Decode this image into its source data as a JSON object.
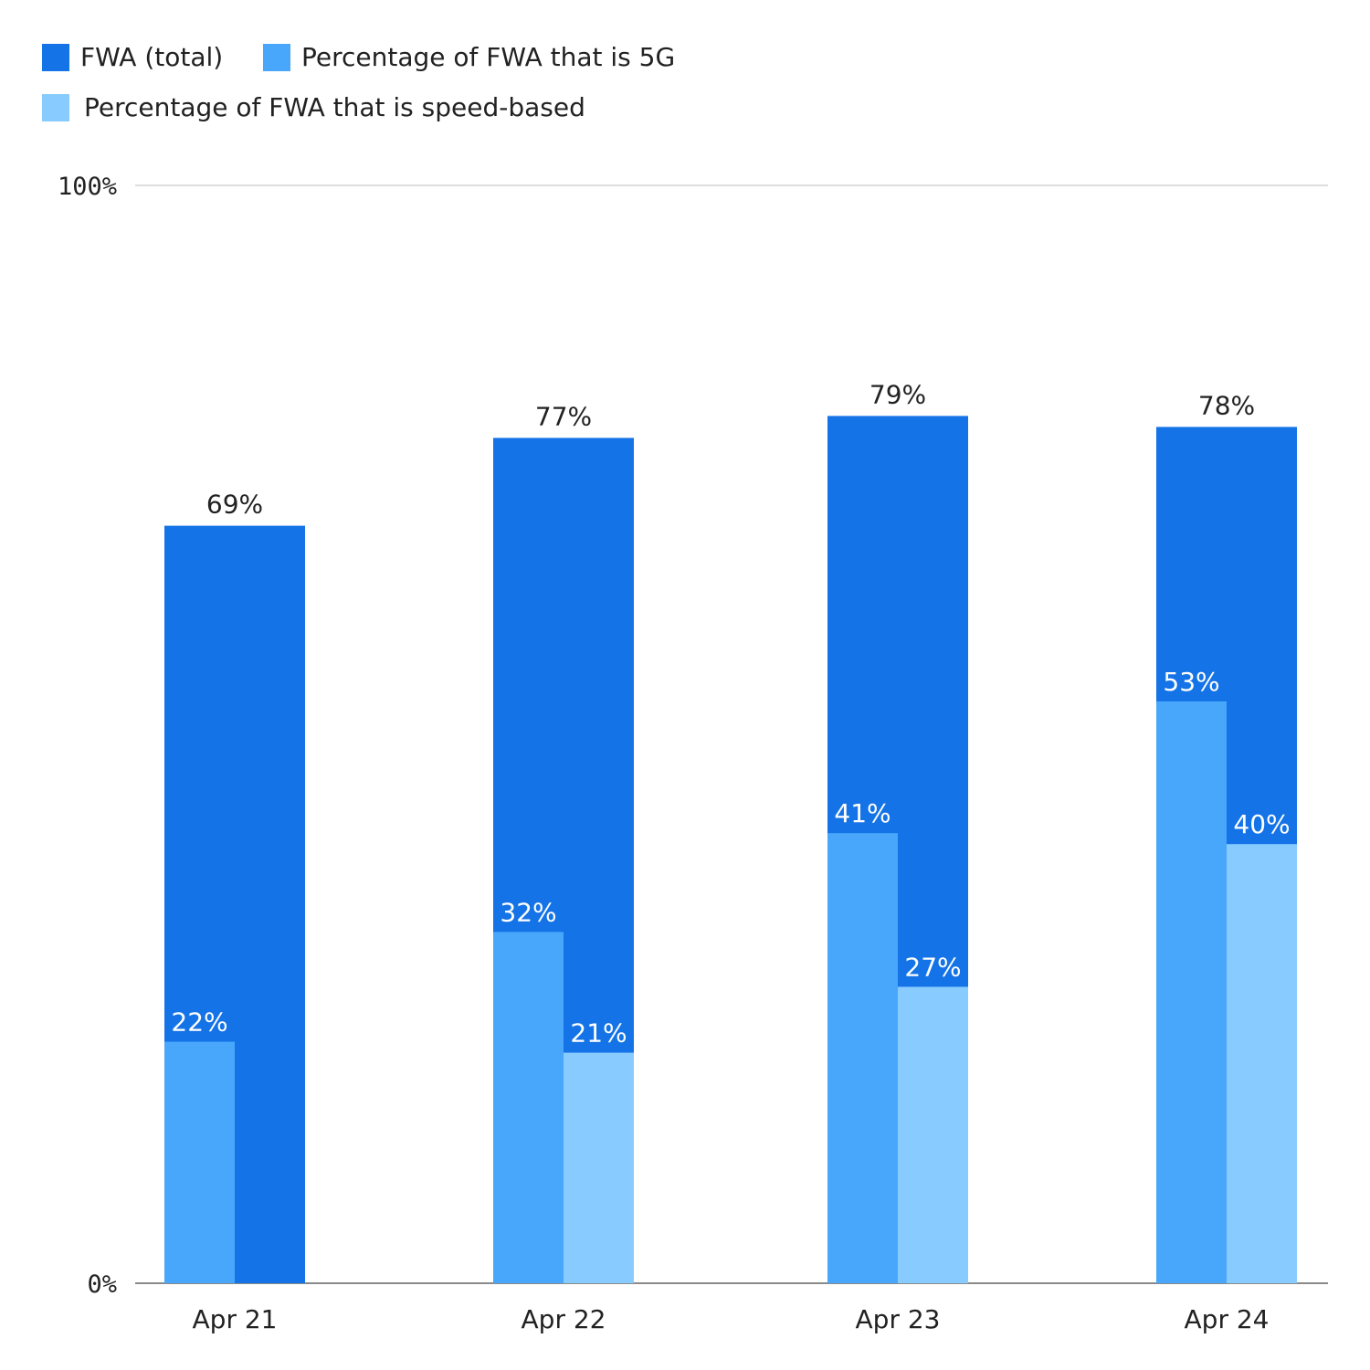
{
  "legend": {
    "items": [
      {
        "label": "FWA (total)",
        "color": "#1473E6"
      },
      {
        "label": "Percentage of FWA that is 5G",
        "color": "#48A7FA"
      },
      {
        "label": "Percentage of FWA that is speed-based",
        "color": "#88CCFF"
      }
    ]
  },
  "chart_data": {
    "type": "bar",
    "categories": [
      "Apr 21",
      "Apr 22",
      "Apr 23",
      "Apr 24"
    ],
    "series": [
      {
        "name": "FWA (total)",
        "values": [
          69,
          77,
          79,
          78
        ],
        "labels": [
          "69%",
          "77%",
          "79%",
          "78%"
        ],
        "color": "#1473E6"
      },
      {
        "name": "Percentage of FWA that is 5G",
        "values": [
          22,
          32,
          41,
          53
        ],
        "labels": [
          "22%",
          "32%",
          "41%",
          "53%"
        ],
        "color": "#48A7FA"
      },
      {
        "name": "Percentage of FWA that is speed-based",
        "values": [
          null,
          21,
          27,
          40
        ],
        "labels": [
          null,
          "21%",
          "27%",
          "40%"
        ],
        "color": "#88CCFF"
      }
    ],
    "yticks": [
      "0%",
      "100%"
    ],
    "ylim": [
      0,
      100
    ],
    "grid": true,
    "legend_position": "top-left"
  }
}
